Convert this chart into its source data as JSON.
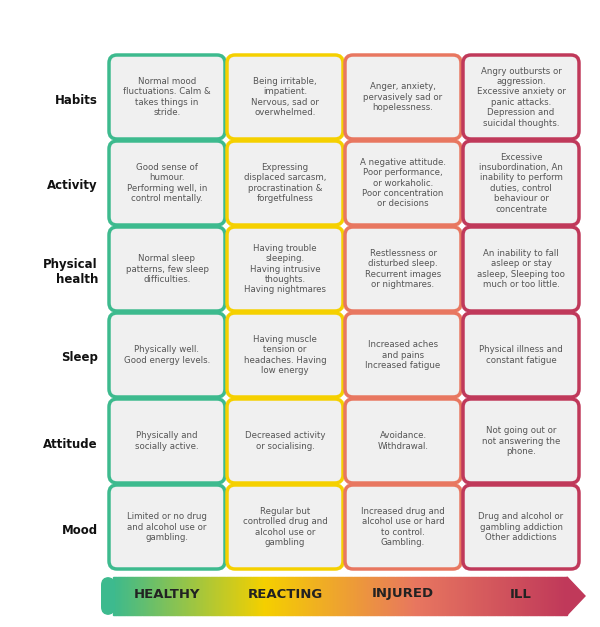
{
  "columns": [
    "HEALTHY",
    "REACTING",
    "INJURED",
    "ILL"
  ],
  "column_colors": [
    "#3dba8e",
    "#f5d000",
    "#e87760",
    "#c0395a"
  ],
  "row_labels": [
    "Mood",
    "Attitude",
    "Sleep",
    "Physical\nhealth",
    "Activity",
    "Habits"
  ],
  "arrow_colors_left": "#3dba8e",
  "arrow_colors_right": "#c0395a",
  "cells": [
    [
      "Normal mood\nfluctuations. Calm &\ntakes things in\nstride.",
      "Being irritable,\nimpatient.\nNervous, sad or\noverwhelmed.",
      "Anger, anxiety,\npervasively sad or\nhopelessness.",
      "Angry outbursts or\naggression.\nExcessive anxiety or\npanic attacks.\nDepression and\nsuicidal thoughts."
    ],
    [
      "Good sense of\nhumour.\nPerforming well, in\ncontrol mentally.",
      "Expressing\ndisplaced sarcasm,\nprocrastination &\nforgetfulness",
      "A negative attitude.\nPoor performance,\nor workaholic.\nPoor concentration\nor decisions",
      "Excessive\ninsubordination, An\ninability to perform\nduties, control\nbehaviour or\nconcentrate"
    ],
    [
      "Normal sleep\npatterns, few sleep\ndifficulties.",
      "Having trouble\nsleeping.\nHaving intrusive\nthoughts.\nHaving nightmares",
      "Restlessness or\ndisturbed sleep.\nRecurrent images\nor nightmares.",
      "An inability to fall\nasleep or stay\nasleep, Sleeping too\nmuch or too little."
    ],
    [
      "Physically well.\nGood energy levels.",
      "Having muscle\ntension or\nheadaches. Having\nlow energy",
      "Increased aches\nand pains\nIncreased fatigue",
      "Physical illness and\nconstant fatigue"
    ],
    [
      "Physically and\nsocially active.",
      "Decreased activity\nor socialising.",
      "Avoidance.\nWithdrawal.",
      "Not going out or\nnot answering the\nphone."
    ],
    [
      "Limited or no drug\nand alcohol use or\ngambling.",
      "Regular but\ncontrolled drug and\nalcohol use or\ngambling",
      "Increased drug and\nalcohol use or hard\nto control.\nGambling.",
      "Drug and alcohol or\ngambling addiction\nOther addictions"
    ]
  ],
  "background_color": "#ffffff",
  "cell_bg": "#f0f0f0",
  "text_color": "#555555",
  "header_text_color": "#222222",
  "row_label_color": "#111111"
}
